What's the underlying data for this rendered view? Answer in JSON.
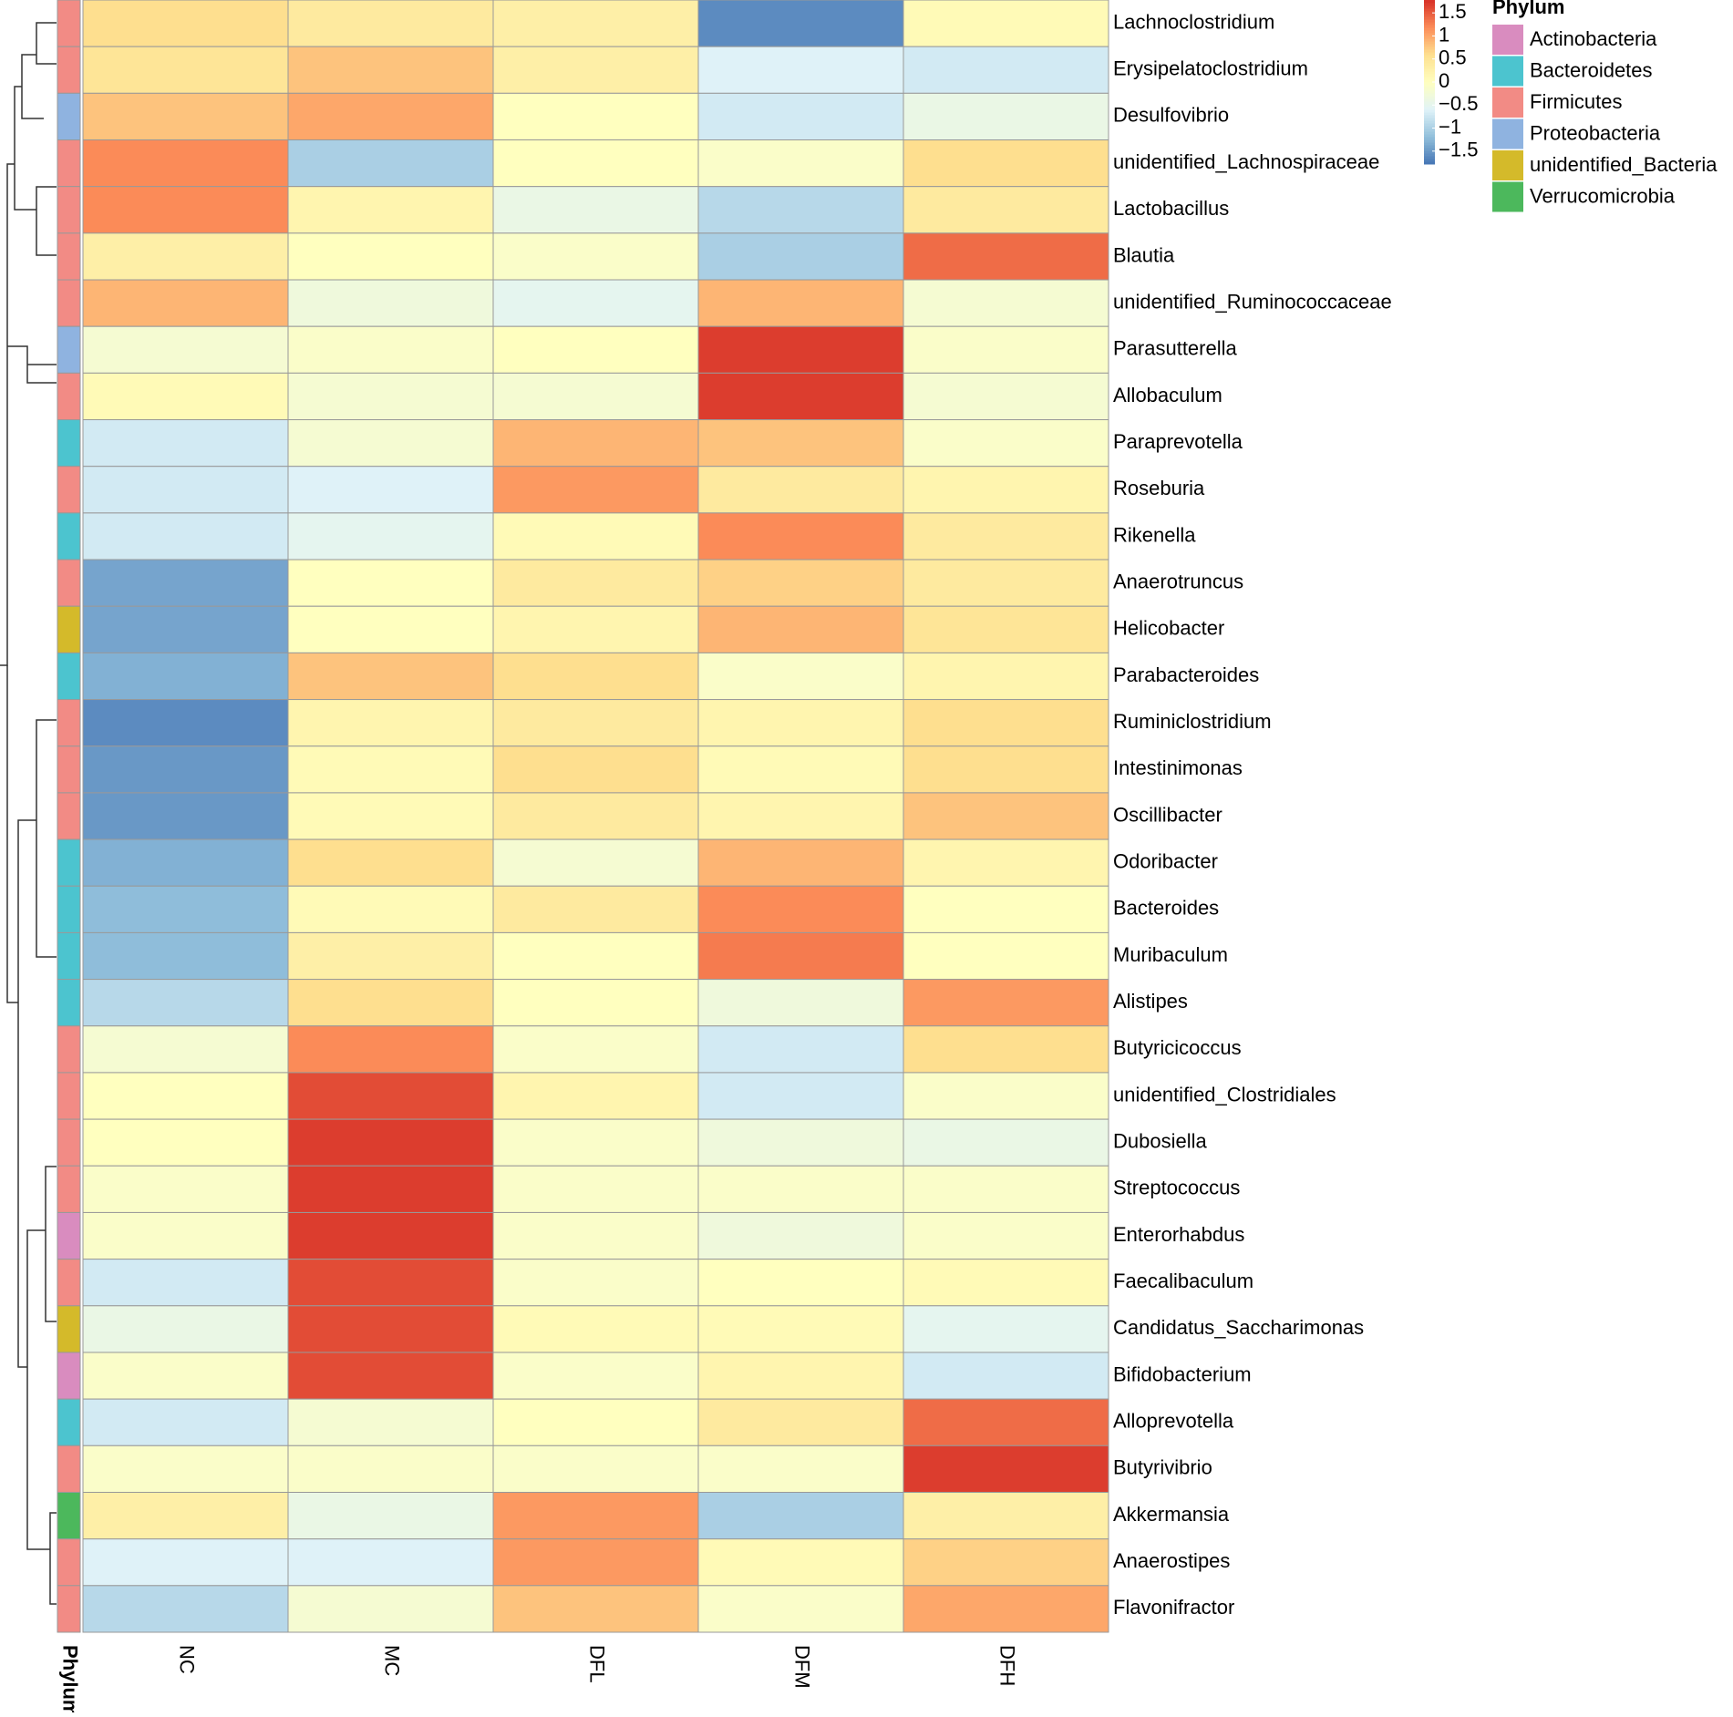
{
  "chart_data": {
    "type": "heatmap",
    "columns": [
      "NC",
      "MC",
      "DFL",
      "DFM",
      "DFH"
    ],
    "rows": [
      "Lachnoclostridium",
      "Erysipelatoclostridium",
      "Desulfovibrio",
      "unidentified_Lachnospiraceae",
      "Lactobacillus",
      "Blautia",
      "unidentified_Ruminococcaceae",
      "Parasutterella",
      "Allobaculum",
      "Paraprevotella",
      "Roseburia",
      "Rikenella",
      "Anaerotruncus",
      "Helicobacter",
      "Parabacteroides",
      "Ruminiclostridium",
      "Intestinimonas",
      "Oscillibacter",
      "Odoribacter",
      "Bacteroides",
      "Muribaculum",
      "Alistipes",
      "Butyricicoccus",
      "unidentified_Clostridiales",
      "Dubosiella",
      "Streptococcus",
      "Enterorhabdus",
      "Faecalibaculum",
      "Candidatus_Saccharimonas",
      "Bifidobacterium",
      "Alloprevotella",
      "Butyrivibrio",
      "Akkermansia",
      "Anaerostipes",
      "Flavonifractor"
    ],
    "values": [
      [
        0.6,
        0.4,
        0.3,
        -1.6,
        0.1
      ],
      [
        0.5,
        0.8,
        0.3,
        -0.6,
        -0.7
      ],
      [
        0.8,
        1.0,
        0.0,
        -0.7,
        -0.4
      ],
      [
        1.2,
        -1.0,
        0.0,
        -0.1,
        0.6
      ],
      [
        1.2,
        0.2,
        -0.4,
        -0.9,
        0.4
      ],
      [
        0.3,
        0.0,
        -0.1,
        -1.0,
        1.4
      ],
      [
        0.9,
        -0.3,
        -0.5,
        0.9,
        -0.2
      ],
      [
        -0.2,
        -0.1,
        0.0,
        1.7,
        -0.1
      ],
      [
        0.1,
        -0.2,
        -0.2,
        1.7,
        -0.2
      ],
      [
        -0.7,
        -0.2,
        0.9,
        0.8,
        -0.1
      ],
      [
        -0.7,
        -0.6,
        1.1,
        0.4,
        0.2
      ],
      [
        -0.7,
        -0.5,
        0.1,
        1.2,
        0.4
      ],
      [
        -1.4,
        0.0,
        0.4,
        0.7,
        0.4
      ],
      [
        -1.4,
        0.0,
        0.2,
        0.9,
        0.5
      ],
      [
        -1.3,
        0.8,
        0.6,
        -0.1,
        0.2
      ],
      [
        -1.6,
        0.2,
        0.4,
        0.2,
        0.6
      ],
      [
        -1.5,
        0.1,
        0.6,
        0.1,
        0.6
      ],
      [
        -1.5,
        0.1,
        0.4,
        0.2,
        0.8
      ],
      [
        -1.3,
        0.6,
        -0.2,
        0.9,
        0.2
      ],
      [
        -1.2,
        0.1,
        0.4,
        1.2,
        0.0
      ],
      [
        -1.2,
        0.3,
        0.0,
        1.3,
        0.0
      ],
      [
        -0.9,
        0.6,
        0.0,
        -0.3,
        1.1
      ],
      [
        -0.2,
        1.2,
        -0.1,
        -0.7,
        0.6
      ],
      [
        0.0,
        1.6,
        0.2,
        -0.7,
        -0.1
      ],
      [
        0.0,
        1.7,
        -0.1,
        -0.3,
        -0.4
      ],
      [
        -0.1,
        1.7,
        -0.1,
        -0.1,
        -0.1
      ],
      [
        -0.1,
        1.7,
        -0.1,
        -0.3,
        -0.1
      ],
      [
        -0.7,
        1.6,
        -0.1,
        0.0,
        0.1
      ],
      [
        -0.4,
        1.6,
        0.1,
        0.1,
        -0.5
      ],
      [
        -0.1,
        1.6,
        -0.1,
        0.2,
        -0.7
      ],
      [
        -0.7,
        -0.2,
        0.0,
        0.4,
        1.4
      ],
      [
        -0.1,
        -0.1,
        -0.1,
        -0.1,
        1.7
      ],
      [
        0.3,
        -0.4,
        1.1,
        -1.0,
        0.3
      ],
      [
        -0.6,
        -0.6,
        1.1,
        0.1,
        0.7
      ],
      [
        -0.9,
        -0.2,
        0.8,
        -0.1,
        1.0
      ]
    ],
    "row_phylum": [
      "Firmicutes",
      "Firmicutes",
      "Proteobacteria",
      "Firmicutes",
      "Firmicutes",
      "Firmicutes",
      "Firmicutes",
      "Proteobacteria",
      "Firmicutes",
      "Bacteroidetes",
      "Firmicutes",
      "Bacteroidetes",
      "Firmicutes",
      "unidentified_Bacteria",
      "Bacteroidetes",
      "Firmicutes",
      "Firmicutes",
      "Firmicutes",
      "Bacteroidetes",
      "Bacteroidetes",
      "Bacteroidetes",
      "Bacteroidetes",
      "Firmicutes",
      "Firmicutes",
      "Firmicutes",
      "Firmicutes",
      "Actinobacteria",
      "Firmicutes",
      "unidentified_Bacteria",
      "Actinobacteria",
      "Bacteroidetes",
      "Firmicutes",
      "Verrucomicrobia",
      "Firmicutes",
      "Firmicutes"
    ],
    "annotation_label": "Phylum",
    "legend_title": "Phylum",
    "legend": [
      {
        "name": "Actinobacteria",
        "color": "#d98cbf"
      },
      {
        "name": "Bacteroidetes",
        "color": "#4cc4cf"
      },
      {
        "name": "Firmicutes",
        "color": "#f28b85"
      },
      {
        "name": "Proteobacteria",
        "color": "#8fb3e0"
      },
      {
        "name": "unidentified_Bacteria",
        "color": "#d4ba2a"
      },
      {
        "name": "Verrucomicrobia",
        "color": "#4cb85c"
      }
    ],
    "colorscale": [
      "#4575b4",
      "#91bfdb",
      "#e0f3f8",
      "#ffffbf",
      "#fee090",
      "#fc8d59",
      "#d73027"
    ],
    "colorlim": [
      -1.78,
      1.78
    ],
    "colorticks": [
      1.5,
      1,
      0.5,
      0,
      {
        "value": -0.5,
        "label": "−0.5"
      },
      {
        "value": -1,
        "label": "−1"
      },
      {
        "value": -1.5,
        "label": "−1.5"
      }
    ]
  }
}
